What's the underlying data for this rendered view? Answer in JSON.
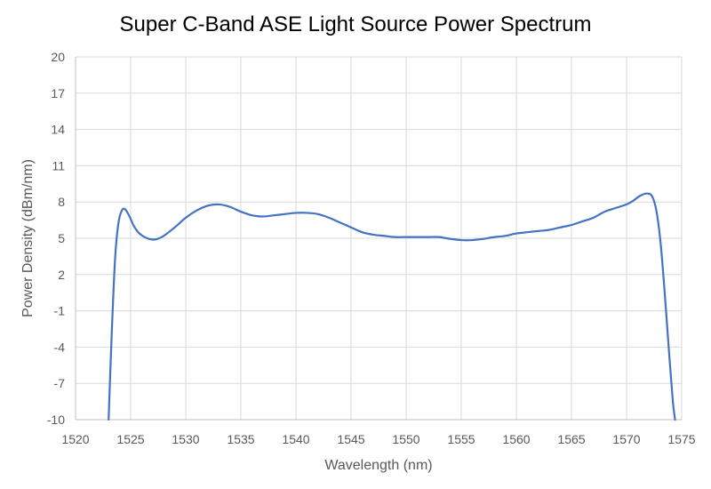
{
  "chart_data": {
    "type": "line",
    "title": "Super C-Band ASE Light Source Power Spectrum",
    "xlabel": "Wavelength (nm)",
    "ylabel": "Power  Density (dBm/nm)",
    "xlim": [
      1520,
      1575
    ],
    "ylim": [
      -10,
      20
    ],
    "xticks": [
      1520,
      1525,
      1530,
      1535,
      1540,
      1545,
      1550,
      1555,
      1560,
      1565,
      1570,
      1575
    ],
    "yticks": [
      -10,
      -7,
      -4,
      -1,
      2,
      5,
      8,
      11,
      14,
      17,
      20
    ],
    "grid": true,
    "legend": "none",
    "series": [
      {
        "color": "#4472C4",
        "x": [
          1523.0,
          1523.3,
          1523.6,
          1523.9,
          1524.2,
          1524.5,
          1524.9,
          1525.3,
          1525.8,
          1526.5,
          1527.2,
          1528.0,
          1529.0,
          1530.0,
          1531.0,
          1532.0,
          1533.0,
          1534.0,
          1535.0,
          1536.0,
          1537.0,
          1538.0,
          1539.0,
          1540.0,
          1541.0,
          1542.0,
          1543.0,
          1544.0,
          1545.0,
          1546.0,
          1547.0,
          1548.0,
          1549.0,
          1550.0,
          1551.0,
          1552.0,
          1553.0,
          1554.0,
          1555.0,
          1556.0,
          1557.0,
          1558.0,
          1559.0,
          1560.0,
          1561.0,
          1562.0,
          1563.0,
          1564.0,
          1565.0,
          1566.0,
          1567.0,
          1568.0,
          1569.0,
          1570.0,
          1570.6,
          1571.2,
          1571.8,
          1572.3,
          1572.7,
          1573.1,
          1573.5,
          1573.9,
          1574.2,
          1574.4
        ],
        "y": [
          -10.0,
          -2.5,
          3.5,
          6.3,
          7.3,
          7.4,
          6.8,
          6.0,
          5.4,
          5.0,
          4.9,
          5.2,
          5.9,
          6.7,
          7.3,
          7.7,
          7.8,
          7.6,
          7.2,
          6.9,
          6.8,
          6.9,
          7.0,
          7.1,
          7.1,
          7.0,
          6.7,
          6.3,
          5.9,
          5.5,
          5.3,
          5.2,
          5.1,
          5.1,
          5.1,
          5.1,
          5.1,
          4.95,
          4.85,
          4.85,
          4.95,
          5.1,
          5.2,
          5.4,
          5.5,
          5.6,
          5.7,
          5.9,
          6.1,
          6.4,
          6.7,
          7.2,
          7.5,
          7.8,
          8.1,
          8.5,
          8.7,
          8.5,
          7.3,
          4.5,
          0.0,
          -5.0,
          -8.5,
          -10.0
        ]
      }
    ]
  }
}
